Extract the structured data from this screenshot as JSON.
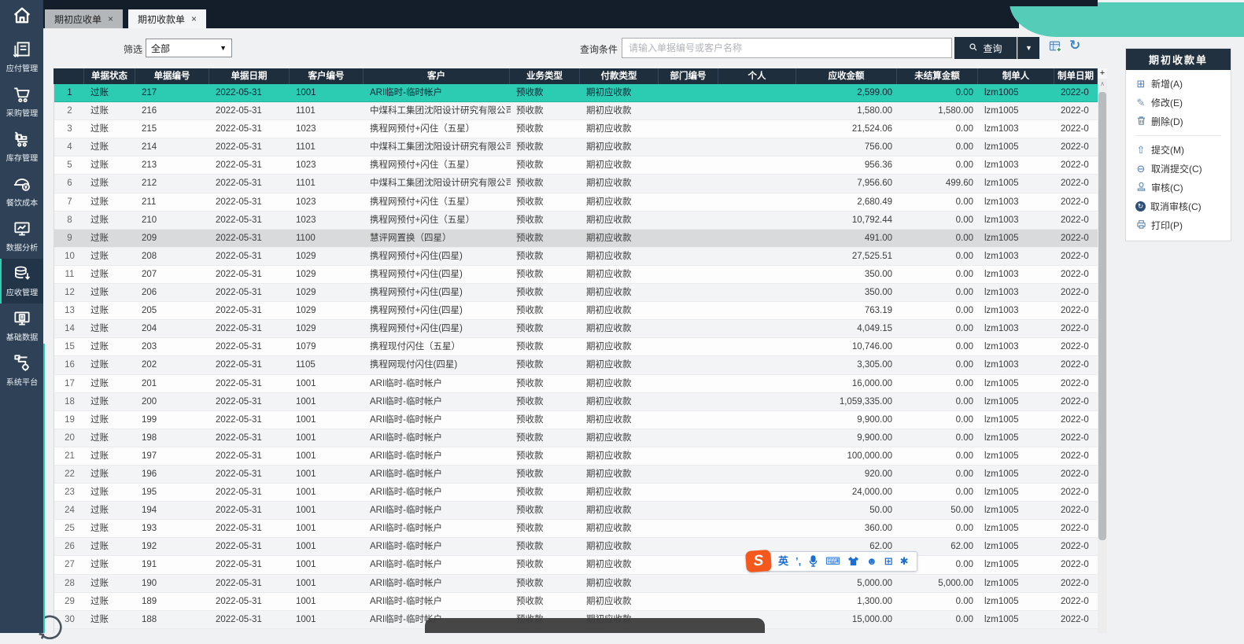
{
  "tabs": [
    {
      "label": "期初应收单"
    },
    {
      "label": "期初收款单"
    }
  ],
  "sidebar": {
    "items": [
      {
        "label": "应付管理"
      },
      {
        "label": "采购管理"
      },
      {
        "label": "库存管理"
      },
      {
        "label": "餐饮成本"
      },
      {
        "label": "数据分析"
      },
      {
        "label": "应收管理",
        "active": true
      },
      {
        "label": "基础数据"
      },
      {
        "label": "系统平台"
      }
    ]
  },
  "filter": {
    "label": "筛选",
    "dropdown_value": "全部",
    "query_label": "查询条件",
    "placeholder": "请输入单据编号或客户名称",
    "search_button": "查询"
  },
  "icons": {
    "close": "×",
    "arrow_down": "▼",
    "plus": "+",
    "scroll_up": "∧",
    "refresh": "↻",
    "add": "⊞",
    "edit": "✎",
    "submit": "⇧",
    "cancel_submit": "⊖",
    "cancel_audit_arrow": "↻",
    "sogou_logo": "S",
    "ime_mode": "英",
    "ime_punct": "’,",
    "ime_keyboard": "⌨",
    "ime_face": "☻",
    "ime_grid": "⊞",
    "ime_gear": "✱"
  },
  "table": {
    "headers": [
      "",
      "单据状态",
      "单据编号",
      "单据日期",
      "客户编号",
      "客户",
      "业务类型",
      "付款类型",
      "部门编号",
      "个人",
      "应收金额",
      "未结算金额",
      "制单人",
      "制单日期"
    ],
    "selected_index": 0,
    "hover_index": 8,
    "rows": [
      [
        "1",
        "过账",
        "217",
        "2022-05-31",
        "1001",
        "ARI临时-临时帐户",
        "预收款",
        "期初应收款",
        "",
        "",
        "2,599.00",
        "0.00",
        "lzm1005",
        "2022-0"
      ],
      [
        "2",
        "过账",
        "216",
        "2022-05-31",
        "1101",
        "中煤科工集团沈阳设计研究有限公司",
        "预收款",
        "期初应收款",
        "",
        "",
        "1,580.00",
        "1,580.00",
        "lzm1005",
        "2022-0"
      ],
      [
        "3",
        "过账",
        "215",
        "2022-05-31",
        "1023",
        "携程网预付+闪住（五星）",
        "预收款",
        "期初应收款",
        "",
        "",
        "21,524.06",
        "0.00",
        "lzm1003",
        "2022-0"
      ],
      [
        "4",
        "过账",
        "214",
        "2022-05-31",
        "1101",
        "中煤科工集团沈阳设计研究有限公司",
        "预收款",
        "期初应收款",
        "",
        "",
        "756.00",
        "0.00",
        "lzm1005",
        "2022-0"
      ],
      [
        "5",
        "过账",
        "213",
        "2022-05-31",
        "1023",
        "携程网预付+闪住（五星）",
        "预收款",
        "期初应收款",
        "",
        "",
        "956.36",
        "0.00",
        "lzm1003",
        "2022-0"
      ],
      [
        "6",
        "过账",
        "212",
        "2022-05-31",
        "1101",
        "中煤科工集团沈阳设计研究有限公司",
        "预收款",
        "期初应收款",
        "",
        "",
        "7,956.60",
        "499.60",
        "lzm1005",
        "2022-0"
      ],
      [
        "7",
        "过账",
        "211",
        "2022-05-31",
        "1023",
        "携程网预付+闪住（五星）",
        "预收款",
        "期初应收款",
        "",
        "",
        "2,680.49",
        "0.00",
        "lzm1003",
        "2022-0"
      ],
      [
        "8",
        "过账",
        "210",
        "2022-05-31",
        "1023",
        "携程网预付+闪住（五星）",
        "预收款",
        "期初应收款",
        "",
        "",
        "10,792.44",
        "0.00",
        "lzm1003",
        "2022-0"
      ],
      [
        "9",
        "过账",
        "209",
        "2022-05-31",
        "1100",
        "慧评网置换（四星）",
        "预收款",
        "期初应收款",
        "",
        "",
        "491.00",
        "0.00",
        "lzm1005",
        "2022-0"
      ],
      [
        "10",
        "过账",
        "208",
        "2022-05-31",
        "1029",
        "携程网预付+闪住(四星)",
        "预收款",
        "期初应收款",
        "",
        "",
        "27,525.51",
        "0.00",
        "lzm1003",
        "2022-0"
      ],
      [
        "11",
        "过账",
        "207",
        "2022-05-31",
        "1029",
        "携程网预付+闪住(四星)",
        "预收款",
        "期初应收款",
        "",
        "",
        "350.00",
        "0.00",
        "lzm1003",
        "2022-0"
      ],
      [
        "12",
        "过账",
        "206",
        "2022-05-31",
        "1029",
        "携程网预付+闪住(四星)",
        "预收款",
        "期初应收款",
        "",
        "",
        "350.00",
        "0.00",
        "lzm1003",
        "2022-0"
      ],
      [
        "13",
        "过账",
        "205",
        "2022-05-31",
        "1029",
        "携程网预付+闪住(四星)",
        "预收款",
        "期初应收款",
        "",
        "",
        "763.19",
        "0.00",
        "lzm1003",
        "2022-0"
      ],
      [
        "14",
        "过账",
        "204",
        "2022-05-31",
        "1029",
        "携程网预付+闪住(四星)",
        "预收款",
        "期初应收款",
        "",
        "",
        "4,049.15",
        "0.00",
        "lzm1003",
        "2022-0"
      ],
      [
        "15",
        "过账",
        "203",
        "2022-05-31",
        "1079",
        "携程现付闪住（五星）",
        "预收款",
        "期初应收款",
        "",
        "",
        "10,746.00",
        "0.00",
        "lzm1003",
        "2022-0"
      ],
      [
        "16",
        "过账",
        "202",
        "2022-05-31",
        "1105",
        "携程网现付闪住(四星)",
        "预收款",
        "期初应收款",
        "",
        "",
        "3,305.00",
        "0.00",
        "lzm1003",
        "2022-0"
      ],
      [
        "17",
        "过账",
        "201",
        "2022-05-31",
        "1001",
        "ARI临时-临时帐户",
        "预收款",
        "期初应收款",
        "",
        "",
        "16,000.00",
        "0.00",
        "lzm1005",
        "2022-0"
      ],
      [
        "18",
        "过账",
        "200",
        "2022-05-31",
        "1001",
        "ARI临时-临时帐户",
        "预收款",
        "期初应收款",
        "",
        "",
        "1,059,335.00",
        "0.00",
        "lzm1005",
        "2022-0"
      ],
      [
        "19",
        "过账",
        "199",
        "2022-05-31",
        "1001",
        "ARI临时-临时帐户",
        "预收款",
        "期初应收款",
        "",
        "",
        "9,900.00",
        "0.00",
        "lzm1005",
        "2022-0"
      ],
      [
        "20",
        "过账",
        "198",
        "2022-05-31",
        "1001",
        "ARI临时-临时帐户",
        "预收款",
        "期初应收款",
        "",
        "",
        "9,900.00",
        "0.00",
        "lzm1005",
        "2022-0"
      ],
      [
        "21",
        "过账",
        "197",
        "2022-05-31",
        "1001",
        "ARI临时-临时帐户",
        "预收款",
        "期初应收款",
        "",
        "",
        "100,000.00",
        "0.00",
        "lzm1005",
        "2022-0"
      ],
      [
        "22",
        "过账",
        "196",
        "2022-05-31",
        "1001",
        "ARI临时-临时帐户",
        "预收款",
        "期初应收款",
        "",
        "",
        "920.00",
        "0.00",
        "lzm1005",
        "2022-0"
      ],
      [
        "23",
        "过账",
        "195",
        "2022-05-31",
        "1001",
        "ARI临时-临时帐户",
        "预收款",
        "期初应收款",
        "",
        "",
        "24,000.00",
        "0.00",
        "lzm1005",
        "2022-0"
      ],
      [
        "24",
        "过账",
        "194",
        "2022-05-31",
        "1001",
        "ARI临时-临时帐户",
        "预收款",
        "期初应收款",
        "",
        "",
        "50.00",
        "50.00",
        "lzm1005",
        "2022-0"
      ],
      [
        "25",
        "过账",
        "193",
        "2022-05-31",
        "1001",
        "ARI临时-临时帐户",
        "预收款",
        "期初应收款",
        "",
        "",
        "360.00",
        "0.00",
        "lzm1005",
        "2022-0"
      ],
      [
        "26",
        "过账",
        "192",
        "2022-05-31",
        "1001",
        "ARI临时-临时帐户",
        "预收款",
        "期初应收款",
        "",
        "",
        "62.00",
        "62.00",
        "lzm1005",
        "2022-0"
      ],
      [
        "27",
        "过账",
        "191",
        "2022-05-31",
        "1001",
        "ARI临时-临时帐户",
        "预收款",
        "期初应收款",
        "",
        "",
        "",
        "0.00",
        "lzm1005",
        "2022-0"
      ],
      [
        "28",
        "过账",
        "190",
        "2022-05-31",
        "1001",
        "ARI临时-临时帐户",
        "预收款",
        "期初应收款",
        "",
        "",
        "5,000.00",
        "5,000.00",
        "lzm1005",
        "2022-0"
      ],
      [
        "29",
        "过账",
        "189",
        "2022-05-31",
        "1001",
        "ARI临时-临时帐户",
        "预收款",
        "期初应收款",
        "",
        "",
        "1,300.00",
        "0.00",
        "lzm1005",
        "2022-0"
      ],
      [
        "30",
        "过账",
        "188",
        "2022-05-31",
        "1001",
        "ARI临时-临时帐户",
        "预收款",
        "期初应收款",
        "",
        "",
        "15,000.00",
        "0.00",
        "lzm1005",
        "2022-0"
      ]
    ]
  },
  "panel": {
    "title": "期初收款单",
    "buttons": [
      {
        "label": "新增(A)"
      },
      {
        "label": "修改(E)"
      },
      {
        "label": "删除(D)"
      },
      {
        "label": "提交(M)"
      },
      {
        "label": "取消提交(C)"
      },
      {
        "label": "审核(C)"
      },
      {
        "label": "取消审核(C)"
      },
      {
        "label": "打印(P)"
      }
    ]
  },
  "colors": {
    "accent_teal": "#2fcdb3",
    "header_navy": "#1f2e3d",
    "sidebar_navy": "#2e4156",
    "sogou_orange": "#f4581c",
    "ime_blue": "#1a6fd4"
  }
}
